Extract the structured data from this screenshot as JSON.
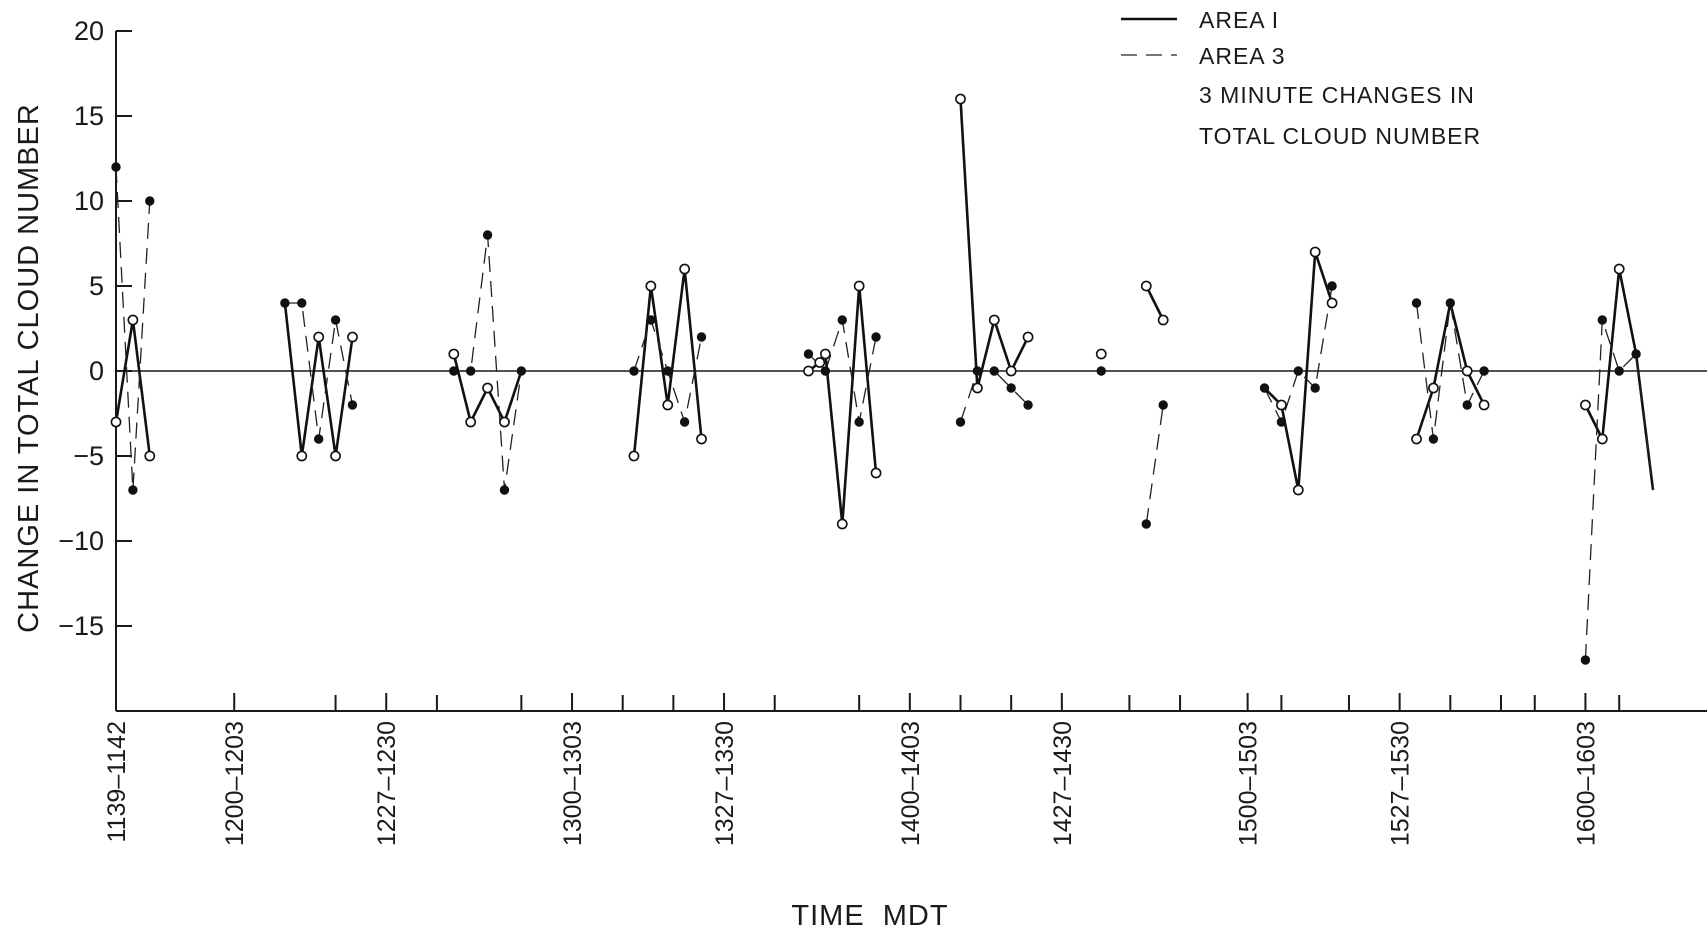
{
  "chart_data": {
    "type": "line",
    "title": "",
    "xlabel": "TIME  MDT",
    "ylabel": "CHANGE IN TOTAL CLOUD NUMBER",
    "ylim": [
      -20,
      20
    ],
    "y_ticks": [
      20,
      15,
      10,
      5,
      0,
      -5,
      -10,
      -15
    ],
    "y_tick_labels": [
      "20",
      "15",
      "10",
      "5",
      "0",
      "−5",
      "−10",
      "−15"
    ],
    "x_unit": "minutes of day",
    "xlim": [
      699,
      966
    ],
    "x_ticks": [
      {
        "t": 699,
        "label": "1139–1142"
      },
      {
        "t": 720,
        "label": "1200–1203"
      },
      {
        "t": 747,
        "label": "1227–1230"
      },
      {
        "t": 780,
        "label": "1300–1303"
      },
      {
        "t": 807,
        "label": "1327–1330"
      },
      {
        "t": 840,
        "label": "1400–1403"
      },
      {
        "t": 867,
        "label": "1427–1430"
      },
      {
        "t": 900,
        "label": "1500–1503"
      },
      {
        "t": 927,
        "label": "1527–1530"
      },
      {
        "t": 960,
        "label": "1600–1603"
      }
    ],
    "x_minor_ticks": [
      738,
      756,
      771,
      789,
      798,
      816,
      831,
      849,
      858,
      879,
      888,
      906,
      918,
      936,
      945,
      951,
      966
    ],
    "legend": {
      "placement": "top-right",
      "entries": [
        {
          "label": "AREA I",
          "style": "solid"
        },
        {
          "label": "AREA 3",
          "style": "dashed"
        }
      ],
      "notes": [
        "3 MINUTE CHANGES IN",
        "TOTAL CLOUD NUMBER"
      ]
    },
    "series": [
      {
        "name": "AREA I",
        "style": "solid",
        "segments": [
          [
            [
              699,
              -3
            ],
            [
              702,
              3
            ],
            [
              705,
              -5
            ]
          ],
          [
            [
              729,
              4
            ],
            [
              732,
              -5
            ],
            [
              735,
              2
            ],
            [
              738,
              -5
            ],
            [
              741,
              2
            ]
          ],
          [
            [
              759,
              1
            ],
            [
              762,
              -3
            ],
            [
              765,
              -1
            ],
            [
              768,
              -3
            ],
            [
              771,
              0
            ]
          ],
          [
            [
              791,
              -5
            ],
            [
              794,
              5
            ],
            [
              797,
              -2
            ],
            [
              800,
              6
            ],
            [
              803,
              -4
            ]
          ],
          [
            [
              822,
              0
            ],
            [
              824,
              0.5
            ],
            [
              825,
              1
            ],
            [
              828,
              -9
            ],
            [
              831,
              5
            ],
            [
              834,
              -6
            ]
          ],
          [
            [
              849,
              16
            ],
            [
              852,
              -1
            ],
            [
              855,
              3
            ],
            [
              858,
              0
            ],
            [
              861,
              2
            ]
          ],
          [
            [
              874,
              1
            ]
          ],
          [
            [
              882,
              5
            ],
            [
              885,
              3
            ]
          ],
          [
            [
              903,
              -1
            ],
            [
              906,
              -2
            ],
            [
              909,
              -7
            ],
            [
              912,
              7
            ],
            [
              915,
              4
            ]
          ],
          [
            [
              930,
              -4
            ],
            [
              933,
              -1
            ],
            [
              936,
              4
            ],
            [
              939,
              0
            ],
            [
              942,
              -2
            ]
          ],
          [
            [
              960,
              -2
            ],
            [
              963,
              -4
            ],
            [
              966,
              6
            ],
            [
              969,
              1
            ],
            [
              972,
              -7
            ]
          ]
        ]
      },
      {
        "name": "AREA 3",
        "style": "dashed",
        "segments": [
          [
            [
              699,
              12
            ],
            [
              702,
              -7
            ],
            [
              705,
              10
            ]
          ],
          [
            [
              729,
              4
            ],
            [
              732,
              4
            ],
            [
              735,
              -4
            ],
            [
              738,
              3
            ],
            [
              741,
              -2
            ]
          ],
          [
            [
              759,
              0
            ],
            [
              762,
              0
            ],
            [
              765,
              8
            ],
            [
              768,
              -7
            ],
            [
              771,
              0
            ]
          ],
          [
            [
              791,
              0
            ],
            [
              794,
              3
            ],
            [
              797,
              0
            ],
            [
              800,
              -3
            ],
            [
              803,
              2
            ]
          ],
          [
            [
              822,
              1
            ],
            [
              825,
              0
            ],
            [
              828,
              3
            ],
            [
              831,
              -3
            ],
            [
              834,
              2
            ]
          ],
          [
            [
              849,
              -3
            ],
            [
              852,
              0
            ],
            [
              855,
              0
            ],
            [
              858,
              -1
            ],
            [
              861,
              -2
            ]
          ],
          [
            [
              874,
              0
            ]
          ],
          [
            [
              882,
              -9
            ],
            [
              885,
              -2
            ]
          ],
          [
            [
              903,
              -1
            ],
            [
              906,
              -3
            ],
            [
              909,
              0
            ],
            [
              912,
              -1
            ],
            [
              915,
              5
            ]
          ],
          [
            [
              930,
              4
            ],
            [
              933,
              -4
            ],
            [
              936,
              4
            ],
            [
              939,
              -2
            ],
            [
              942,
              0
            ]
          ],
          [
            [
              960,
              -17
            ],
            [
              963,
              3
            ],
            [
              966,
              0
            ],
            [
              969,
              1
            ],
            [
              972,
              -7
            ]
          ]
        ]
      }
    ],
    "markers": {
      "filled": [
        [
          699,
          12
        ],
        [
          702,
          -7
        ],
        [
          705,
          10
        ],
        [
          729,
          4
        ],
        [
          732,
          4
        ],
        [
          735,
          -4
        ],
        [
          738,
          3
        ],
        [
          741,
          -2
        ],
        [
          759,
          0
        ],
        [
          762,
          0
        ],
        [
          765,
          8
        ],
        [
          768,
          -7
        ],
        [
          771,
          0
        ],
        [
          791,
          0
        ],
        [
          794,
          3
        ],
        [
          797,
          0
        ],
        [
          800,
          -3
        ],
        [
          803,
          2
        ],
        [
          822,
          1
        ],
        [
          825,
          0
        ],
        [
          828,
          3
        ],
        [
          831,
          -3
        ],
        [
          834,
          2
        ],
        [
          849,
          -3
        ],
        [
          852,
          0
        ],
        [
          855,
          0
        ],
        [
          858,
          -1
        ],
        [
          861,
          -2
        ],
        [
          874,
          0
        ],
        [
          882,
          -9
        ],
        [
          885,
          -2
        ],
        [
          903,
          -1
        ],
        [
          906,
          -3
        ],
        [
          909,
          0
        ],
        [
          912,
          -1
        ],
        [
          915,
          5
        ],
        [
          930,
          4
        ],
        [
          933,
          -4
        ],
        [
          936,
          4
        ],
        [
          939,
          -2
        ],
        [
          942,
          0
        ],
        [
          960,
          -17
        ],
        [
          963,
          3
        ],
        [
          966,
          0
        ],
        [
          969,
          1
        ]
      ],
      "open": [
        [
          699,
          -3
        ],
        [
          702,
          3
        ],
        [
          705,
          -5
        ],
        [
          732,
          -5
        ],
        [
          735,
          2
        ],
        [
          738,
          -5
        ],
        [
          741,
          2
        ],
        [
          759,
          1
        ],
        [
          762,
          -3
        ],
        [
          765,
          -1
        ],
        [
          768,
          -3
        ],
        [
          791,
          -5
        ],
        [
          794,
          5
        ],
        [
          797,
          -2
        ],
        [
          800,
          6
        ],
        [
          803,
          -4
        ],
        [
          822,
          0
        ],
        [
          824,
          0.5
        ],
        [
          825,
          1
        ],
        [
          828,
          -9
        ],
        [
          831,
          5
        ],
        [
          834,
          -6
        ],
        [
          849,
          16
        ],
        [
          852,
          -1
        ],
        [
          855,
          3
        ],
        [
          858,
          0
        ],
        [
          861,
          2
        ],
        [
          874,
          1
        ],
        [
          882,
          5
        ],
        [
          885,
          3
        ],
        [
          906,
          -2
        ],
        [
          909,
          -7
        ],
        [
          912,
          7
        ],
        [
          915,
          4
        ],
        [
          930,
          -4
        ],
        [
          933,
          -1
        ],
        [
          939,
          0
        ],
        [
          942,
          -2
        ],
        [
          960,
          -2
        ],
        [
          963,
          -4
        ],
        [
          966,
          6
        ]
      ]
    }
  }
}
